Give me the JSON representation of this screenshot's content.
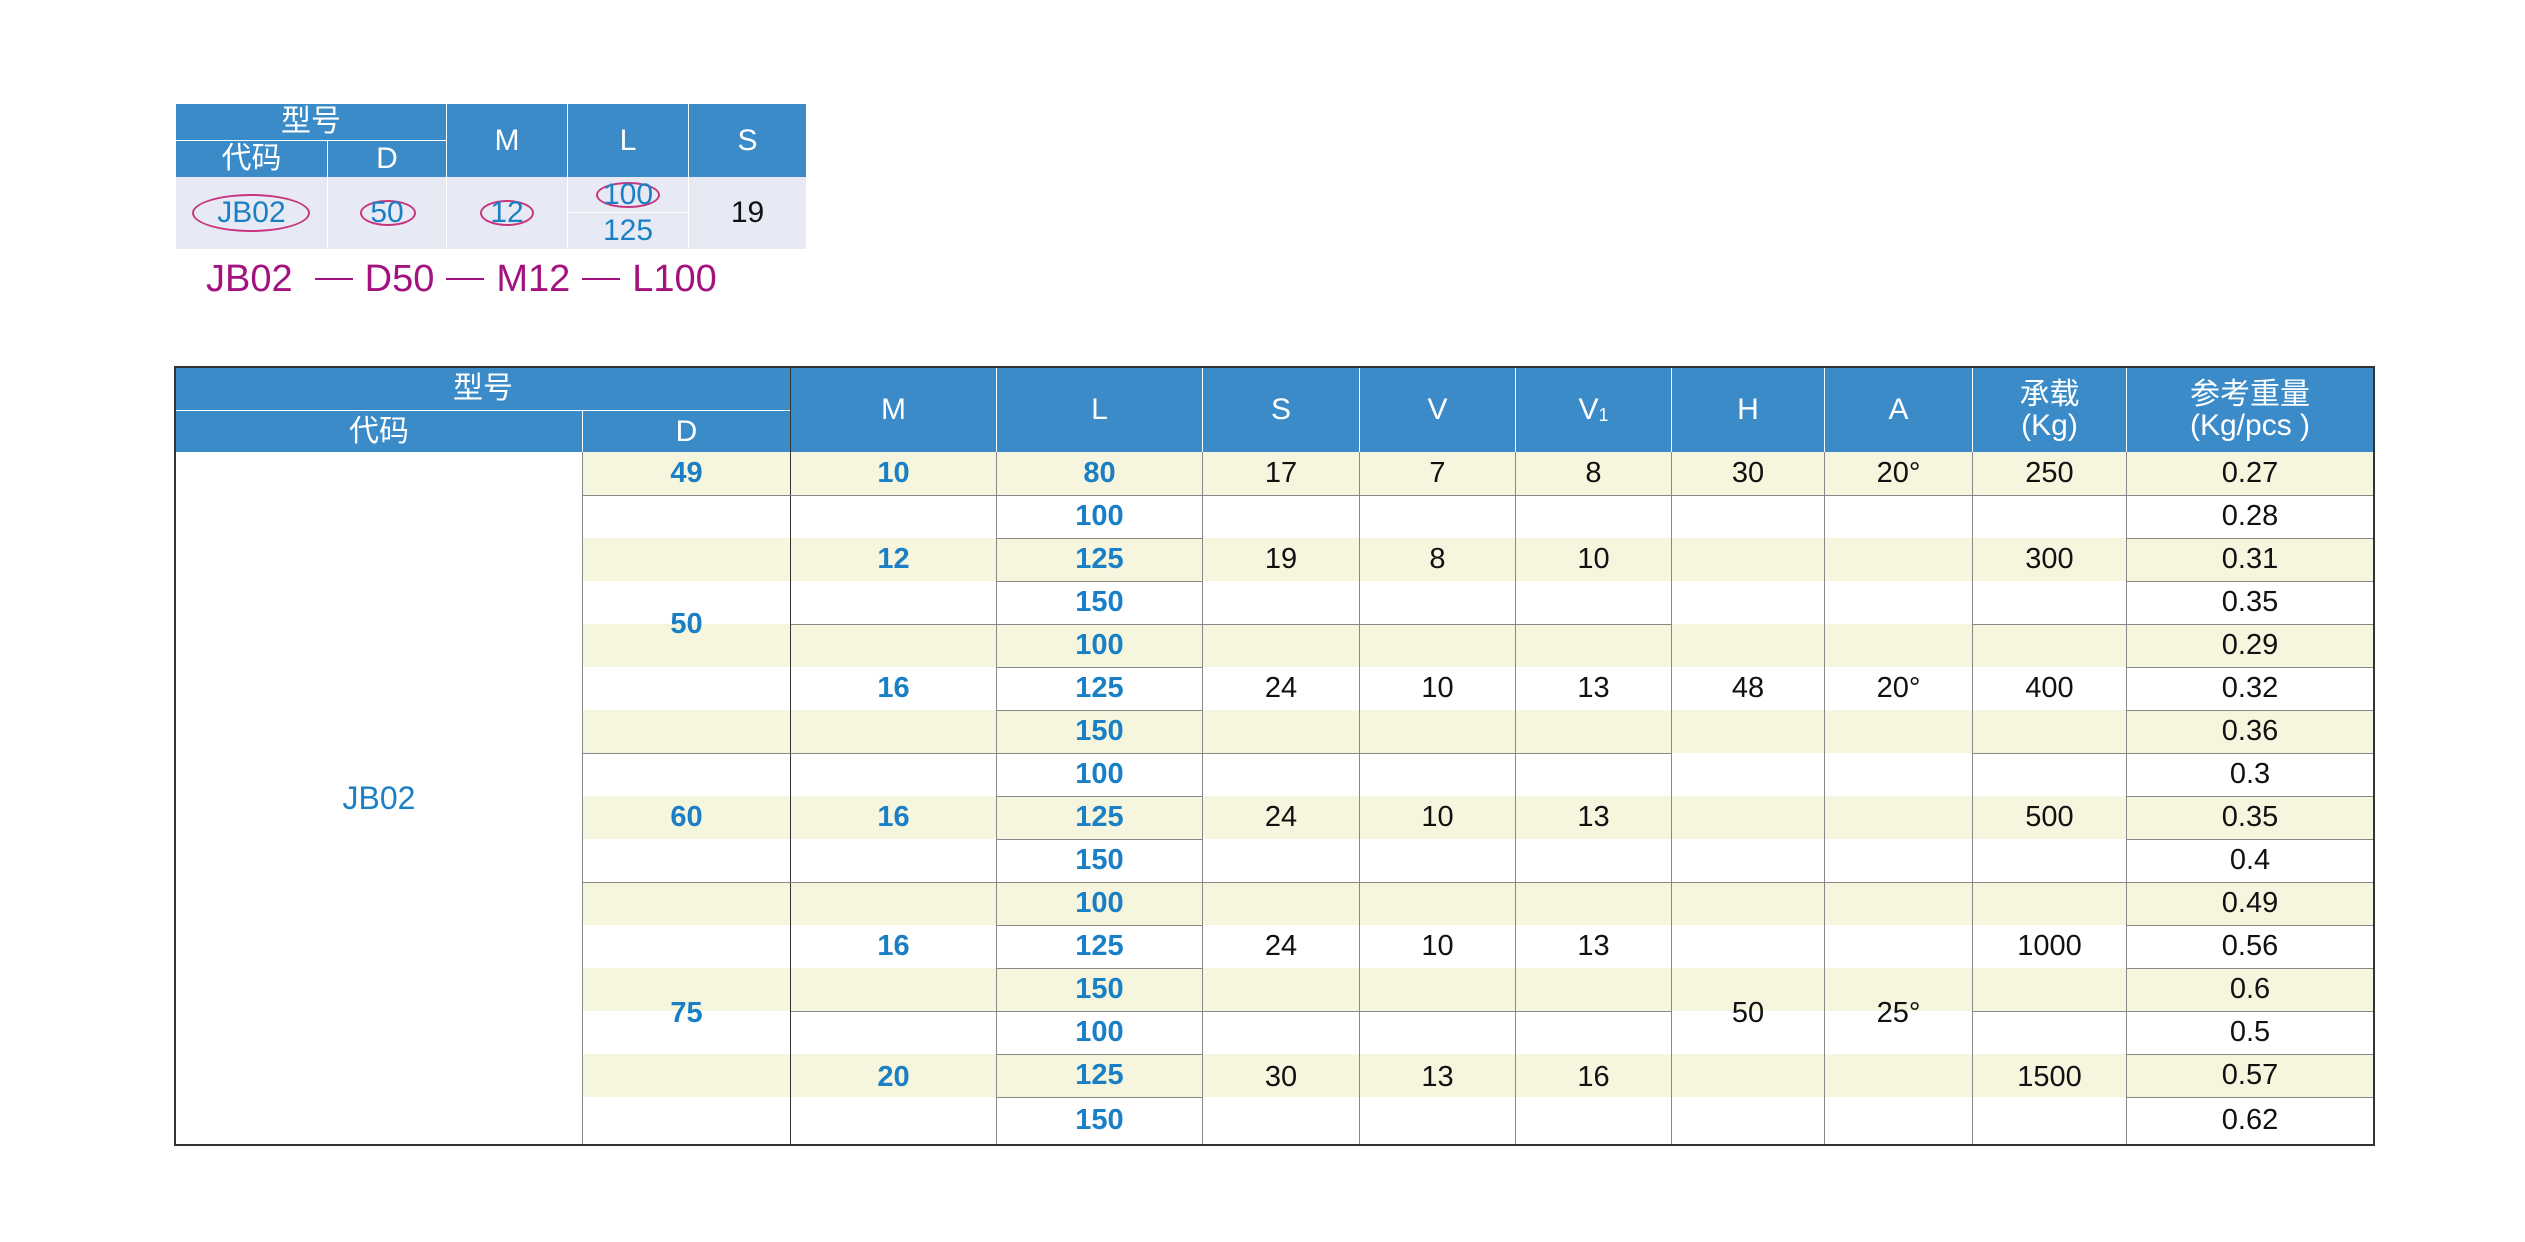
{
  "example": {
    "header": {
      "model": "型号",
      "code": "代码",
      "d": "D",
      "m": "M",
      "l": "L",
      "s": "S"
    },
    "values": {
      "code": "JB02",
      "d": "50",
      "m": "12",
      "l1": "100",
      "l2": "125",
      "s": "19"
    },
    "order_code": {
      "part1": "JB02",
      "part2": "D50",
      "part3": "M12",
      "part4": "L100"
    }
  },
  "spec": {
    "header": {
      "model": "型号",
      "code": "代码",
      "d": "D",
      "m": "M",
      "l": "L",
      "s": "S",
      "v": "V",
      "v1_main": "V",
      "v1_sub": "1",
      "h": "H",
      "a": "A",
      "load_1": "承载",
      "load_2": "(Kg)",
      "weight_1": "参考重量",
      "weight_2": "(Kg/pcs )"
    },
    "code": "JB02",
    "d_values": [
      "49",
      "50",
      "60",
      "75"
    ],
    "m_values": [
      "10",
      "12",
      "16",
      "16",
      "16",
      "20"
    ],
    "l_values": [
      "80",
      "100",
      "125",
      "150",
      "100",
      "125",
      "150",
      "100",
      "125",
      "150",
      "100",
      "125",
      "150",
      "100",
      "125",
      "150"
    ],
    "s_values": [
      "17",
      "19",
      "24",
      "24",
      "24",
      "30"
    ],
    "v_values": [
      "7",
      "8",
      "10",
      "10",
      "10",
      "13"
    ],
    "v1_values": [
      "8",
      "10",
      "13",
      "13",
      "13",
      "16"
    ],
    "h_values": [
      "30",
      "48",
      "50"
    ],
    "a_values": [
      "20°",
      "20°",
      "25°"
    ],
    "load_values": [
      "250",
      "300",
      "400",
      "500",
      "1000",
      "1500"
    ],
    "weights": [
      "0.27",
      "0.28",
      "0.31",
      "0.35",
      "0.29",
      "0.32",
      "0.36",
      "0.3",
      "0.35",
      "0.4",
      "0.49",
      "0.56",
      "0.6",
      "0.5",
      "0.57",
      "0.62"
    ]
  }
}
